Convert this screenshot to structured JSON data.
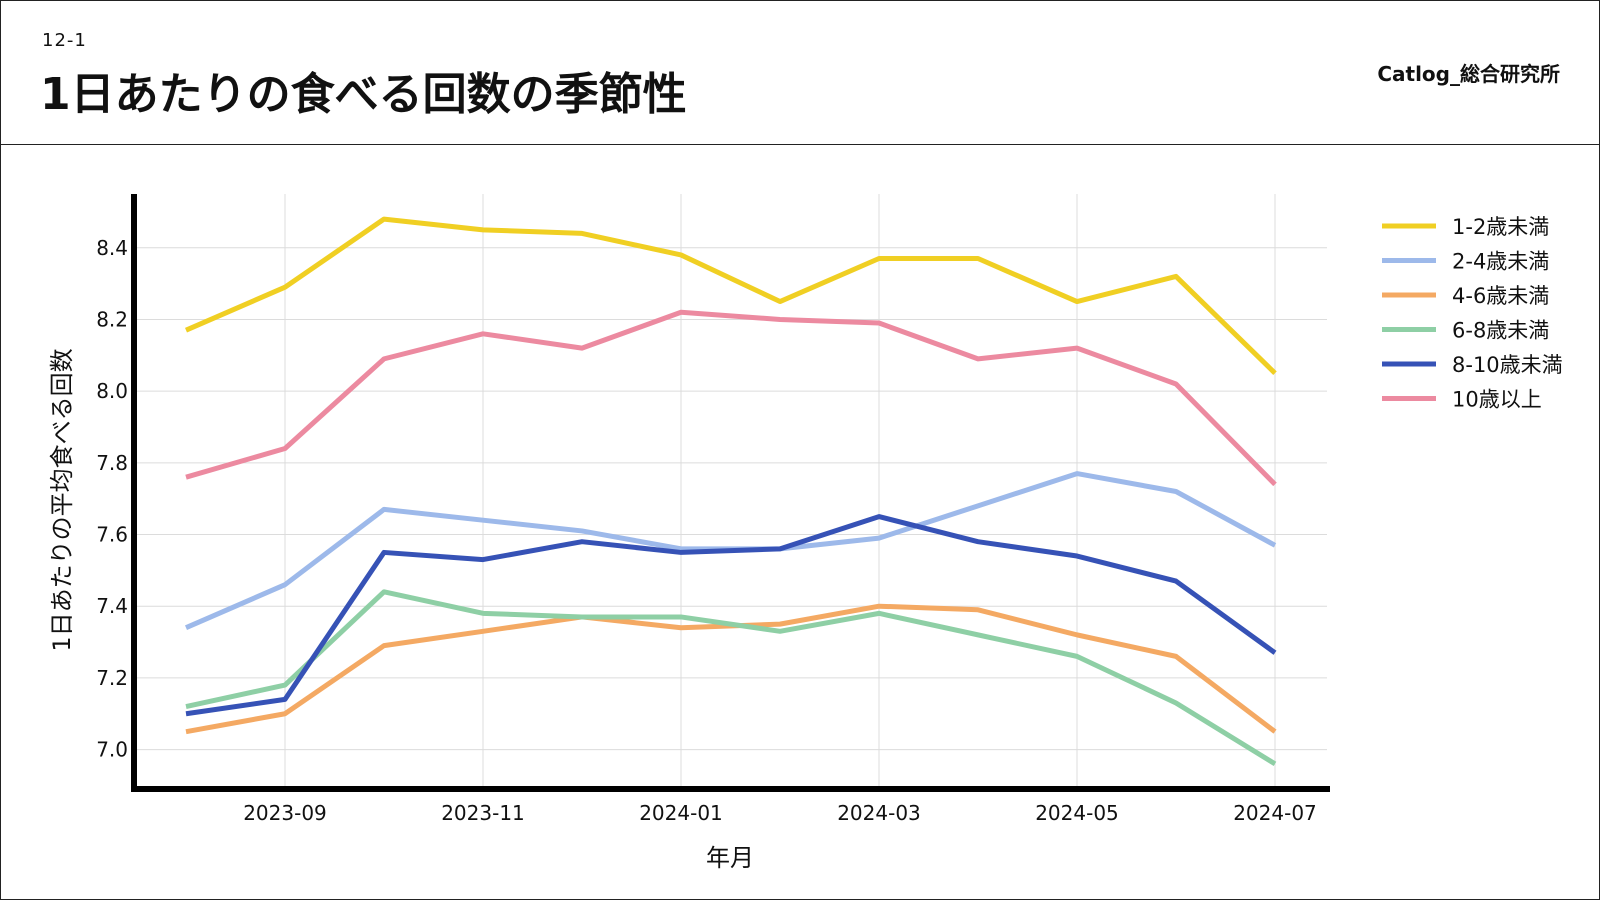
{
  "header": {
    "slide_number": "12-1",
    "title": "1日あたりの食べる回数の季節性",
    "brand": "Catlog_総合研究所"
  },
  "chart_data": {
    "type": "line",
    "title": "",
    "xlabel": "年月",
    "ylabel": "1日あたりの平均食べる回数",
    "x": [
      "2023-08",
      "2023-09",
      "2023-10",
      "2023-11",
      "2023-12",
      "2024-01",
      "2024-02",
      "2024-03",
      "2024-04",
      "2024-05",
      "2024-06",
      "2024-07"
    ],
    "x_tick_labels": [
      "2023-09",
      "2023-11",
      "2024-01",
      "2024-03",
      "2024-05",
      "2024-07"
    ],
    "y_ticks": [
      7.0,
      7.2,
      7.4,
      7.6,
      7.8,
      8.0,
      8.2,
      8.4
    ],
    "y_tick_labels": [
      "7.0",
      "7.2",
      "7.4",
      "7.6",
      "7.8",
      "8.0",
      "8.2",
      "8.4"
    ],
    "ylim": [
      6.89,
      8.55
    ],
    "grid": true,
    "legend_position": "right",
    "series": [
      {
        "name": "1-2歳未満",
        "color": "#F0CF23",
        "values": [
          8.17,
          8.29,
          8.48,
          8.45,
          8.44,
          8.38,
          8.25,
          8.37,
          8.37,
          8.25,
          8.32,
          8.05
        ]
      },
      {
        "name": "2-4歳未満",
        "color": "#9DB9EA",
        "values": [
          7.34,
          7.46,
          7.67,
          7.64,
          7.61,
          7.56,
          7.56,
          7.59,
          7.68,
          7.77,
          7.72,
          7.57
        ]
      },
      {
        "name": "4-6歳未満",
        "color": "#F4A963",
        "values": [
          7.05,
          7.1,
          7.29,
          7.33,
          7.37,
          7.34,
          7.35,
          7.4,
          7.39,
          7.32,
          7.26,
          7.05
        ]
      },
      {
        "name": "6-8歳未満",
        "color": "#8ECFA5",
        "values": [
          7.12,
          7.18,
          7.44,
          7.38,
          7.37,
          7.37,
          7.33,
          7.38,
          7.32,
          7.26,
          7.13,
          6.96
        ]
      },
      {
        "name": "8-10歳未満",
        "color": "#3652B6",
        "values": [
          7.1,
          7.14,
          7.55,
          7.53,
          7.58,
          7.55,
          7.56,
          7.65,
          7.58,
          7.54,
          7.47,
          7.27
        ]
      },
      {
        "name": "10歳以上",
        "color": "#EC8AA0",
        "values": [
          7.76,
          7.84,
          8.09,
          8.16,
          8.12,
          8.22,
          8.2,
          8.19,
          8.09,
          8.12,
          8.02,
          7.74
        ]
      }
    ]
  }
}
